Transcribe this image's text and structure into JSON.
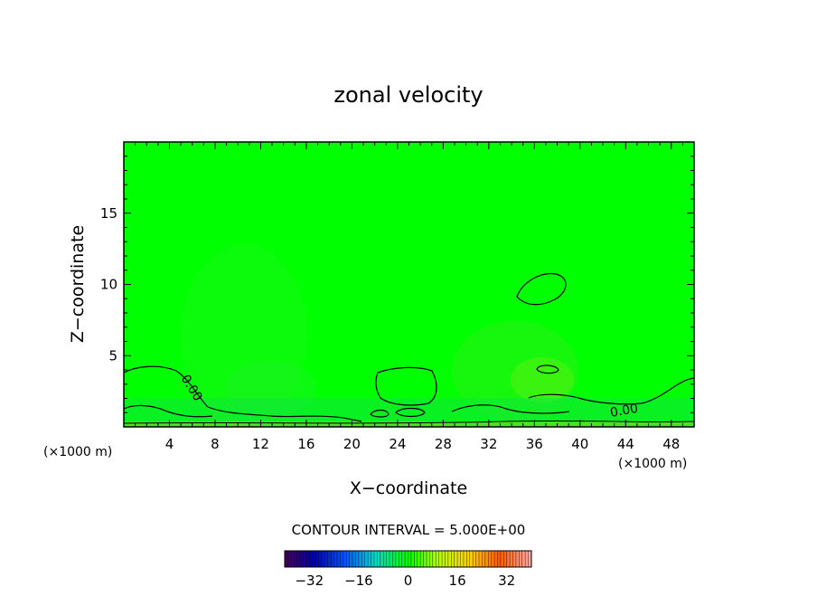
{
  "chart_data": {
    "type": "heatmap",
    "title": "zonal velocity",
    "xlabel": "X−coordinate",
    "ylabel": "Z−coordinate",
    "x_units": "(×1000 m)",
    "xlim": [
      0,
      50
    ],
    "ylim": [
      0,
      20
    ],
    "x_ticks": [
      4,
      8,
      12,
      16,
      20,
      24,
      28,
      32,
      36,
      40,
      44,
      48
    ],
    "y_ticks": [
      5,
      10,
      15
    ],
    "field_color": "#00ff00",
    "contour_labels": [
      "0.00",
      "0.00"
    ],
    "contour_interval_text": "CONTOUR INTERVAL = 5.000E+00",
    "colorbar": {
      "min": -40,
      "max": 40,
      "tick_values": [
        -32,
        -16,
        0,
        16,
        32
      ],
      "tick_labels": [
        "−32",
        "−16",
        "0",
        "16",
        "32"
      ]
    }
  }
}
